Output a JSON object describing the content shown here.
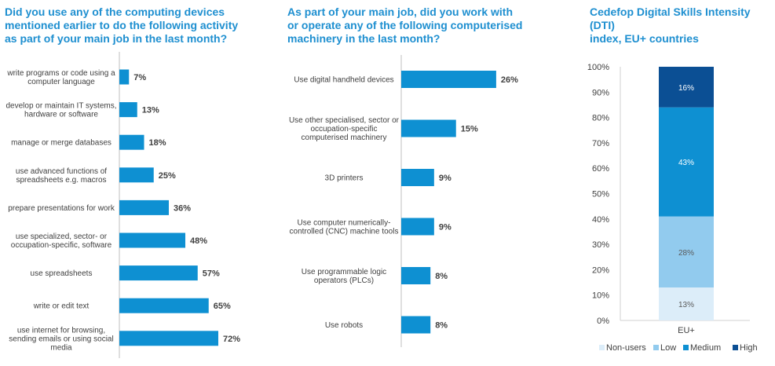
{
  "chart_data": [
    {
      "type": "bar",
      "orientation": "horizontal",
      "title": "Did you use any of the computing devices\nmentioned earlier to do the following activity\nas part of your main job in the last month?",
      "categories": [
        "write programs or code using a\ncomputer language",
        "develop or maintain IT systems,\nhardware or software",
        "manage or merge databases",
        "use advanced functions of\nspreadsheets e.g. macros",
        "prepare presentations for work",
        "use specialized, sector- or\noccupation-specific, software",
        "use spreadsheets",
        "write or edit text",
        "use internet for browsing,\nsending emails or using social\nmedia"
      ],
      "values": [
        7,
        13,
        18,
        25,
        36,
        48,
        57,
        65,
        72
      ],
      "value_labels": [
        "7%",
        "13%",
        "18%",
        "25%",
        "36%",
        "48%",
        "57%",
        "65%",
        "72%"
      ],
      "color": "#0e90d2"
    },
    {
      "type": "bar",
      "orientation": "horizontal",
      "title": "As part of your main job, did you work with\nor operate any of the following computerised\nmachinery in the last month?",
      "categories": [
        "Use digital handheld devices",
        "Use other specialised, sector or\noccupation-specific\ncomputerised machinery",
        "3D printers",
        "Use computer numerically-\ncontrolled (CNC) machine tools",
        "Use programmable logic\noperators (PLCs)",
        "Use robots"
      ],
      "values": [
        26,
        15,
        9,
        9,
        8,
        8
      ],
      "value_labels": [
        "26%",
        "15%",
        "9%",
        "9%",
        "8%",
        "8%"
      ],
      "color": "#0e90d2"
    },
    {
      "type": "bar",
      "stacked": true,
      "title": "Cedefop Digital Skills Intensity (DTI)\nindex, EU+ countries",
      "categories": [
        "EU+"
      ],
      "series": [
        {
          "name": "Non-users",
          "values": [
            13
          ],
          "label": "13%",
          "color": "#dcedf9"
        },
        {
          "name": "Low",
          "values": [
            28
          ],
          "label": "28%",
          "color": "#92cbee"
        },
        {
          "name": "Medium",
          "values": [
            43
          ],
          "label": "43%",
          "color": "#0e90d2"
        },
        {
          "name": "High",
          "values": [
            16
          ],
          "label": "16%",
          "color": "#0b4f94"
        }
      ],
      "ylim": [
        0,
        100
      ],
      "yticks": [
        "0%",
        "10%",
        "20%",
        "30%",
        "40%",
        "50%",
        "60%",
        "70%",
        "80%",
        "90%",
        "100%"
      ],
      "legend_position": "bottom"
    }
  ]
}
